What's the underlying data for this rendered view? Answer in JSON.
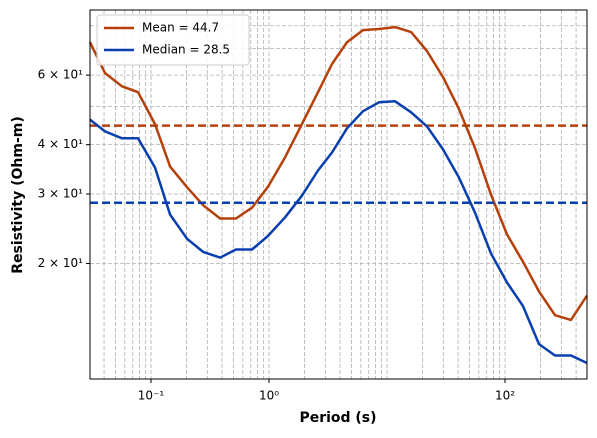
{
  "chart_data": {
    "type": "line",
    "xlabel": "Period (s)",
    "ylabel": "Resistivity (Ohm-m)",
    "xscale": "log",
    "yscale": "log",
    "grid": true,
    "legend": "upper left",
    "xlim": [
      0.0304,
      495
    ],
    "ylim": [
      10.2,
      87.7
    ],
    "xticks": [
      {
        "value": 0.1,
        "label": "10⁻¹"
      },
      {
        "value": 1,
        "label": "10⁰"
      },
      {
        "value": 100,
        "label": "10²"
      }
    ],
    "yticks": [
      {
        "value": 20,
        "label": "2 × 10¹"
      },
      {
        "value": 30,
        "label": "3 × 10¹"
      },
      {
        "value": 40,
        "label": "4 × 10¹"
      },
      {
        "value": 60,
        "label": "6 × 10¹"
      }
    ],
    "xminor": [
      0.04,
      0.05,
      0.06,
      0.07,
      0.08,
      0.09,
      0.2,
      0.3,
      0.4,
      0.5,
      0.6,
      0.7,
      0.8,
      0.9,
      2,
      3,
      4,
      5,
      6,
      7,
      8,
      9,
      10,
      20,
      30,
      40,
      50,
      60,
      70,
      80,
      90,
      200,
      300,
      400
    ],
    "yminor": [
      50,
      70,
      80
    ],
    "x": [
      0.0304,
      0.0407,
      0.0568,
      0.0776,
      0.108,
      0.145,
      0.202,
      0.276,
      0.385,
      0.525,
      0.718,
      0.98,
      1.37,
      1.9,
      2.6,
      3.42,
      4.58,
      6.26,
      8.55,
      11.7,
      16.0,
      21.8,
      29.8,
      40.7,
      55.7,
      76.1,
      104,
      142,
      194,
      265,
      362,
      495
    ],
    "series": [
      {
        "name": "Mean = 44.7",
        "color": "#b5400a",
        "values": [
          72.7,
          60.7,
          56.2,
          54.3,
          45.1,
          35.2,
          31.2,
          28.1,
          26.0,
          26.0,
          27.7,
          31.3,
          37.2,
          45.1,
          54.3,
          64.0,
          72.7,
          78.0,
          78.5,
          79.4,
          77.1,
          69.0,
          59.3,
          49.2,
          39.2,
          29.9,
          23.7,
          20.2,
          17.0,
          14.8,
          14.4,
          16.6
        ],
        "hline": 44.7
      },
      {
        "name": "Median = 28.5",
        "color": "#0a3fb0",
        "values": [
          46.3,
          43.2,
          41.5,
          41.5,
          35.0,
          26.6,
          23.1,
          21.4,
          20.7,
          21.7,
          21.7,
          23.5,
          26.2,
          29.7,
          34.4,
          38.2,
          44.0,
          48.6,
          51.2,
          51.5,
          48.3,
          44.5,
          38.9,
          33.0,
          26.9,
          21.2,
          17.9,
          15.6,
          12.5,
          11.7,
          11.7,
          11.2
        ],
        "hline": 28.5
      }
    ]
  }
}
